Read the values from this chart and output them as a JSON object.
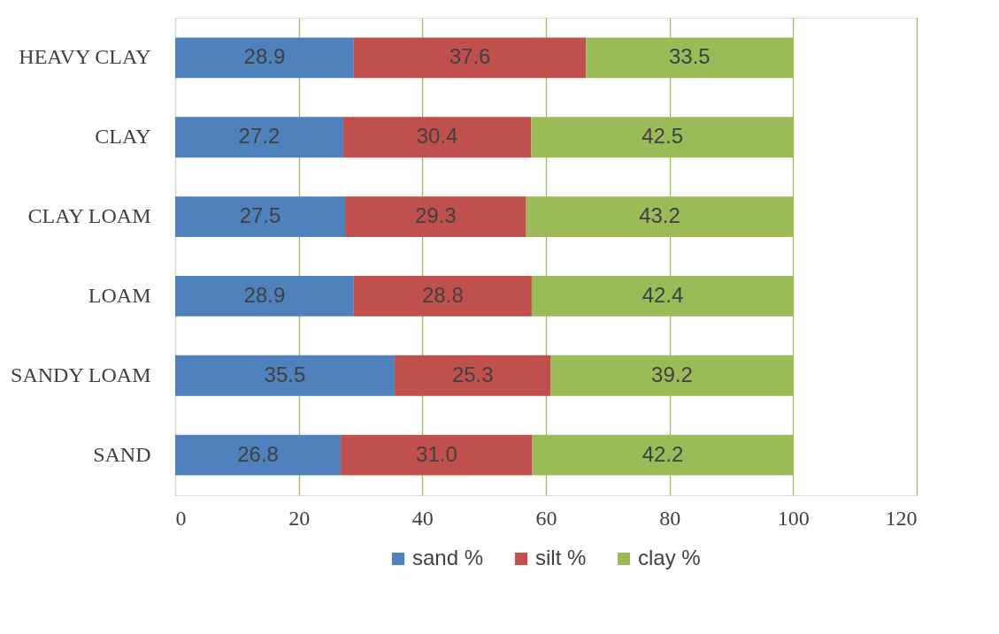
{
  "chart_data": {
    "type": "bar",
    "orientation": "horizontal",
    "stacked": true,
    "categories": [
      "HEAVY CLAY",
      "CLAY",
      "CLAY LOAM",
      "LOAM",
      "SANDY LOAM",
      "SAND"
    ],
    "series": [
      {
        "name": "sand %",
        "color": "#4f81bd",
        "values": [
          28.9,
          27.2,
          27.5,
          28.9,
          35.5,
          26.8
        ]
      },
      {
        "name": "silt %",
        "color": "#c0504d",
        "values": [
          37.6,
          30.4,
          29.3,
          28.8,
          25.3,
          31.0
        ],
        "value_labels": [
          "37.6",
          "30.4",
          "29.3",
          "28.8",
          "25.3",
          "31.0"
        ]
      },
      {
        "name": "clay %",
        "color": "#9bbb59",
        "values": [
          33.5,
          42.5,
          43.2,
          42.4,
          39.2,
          42.2
        ]
      }
    ],
    "xlim": [
      0,
      120
    ],
    "xticks": [
      0,
      20,
      40,
      60,
      80,
      100,
      120
    ],
    "grid": "x",
    "legend": "bottom",
    "data_labels": true
  }
}
